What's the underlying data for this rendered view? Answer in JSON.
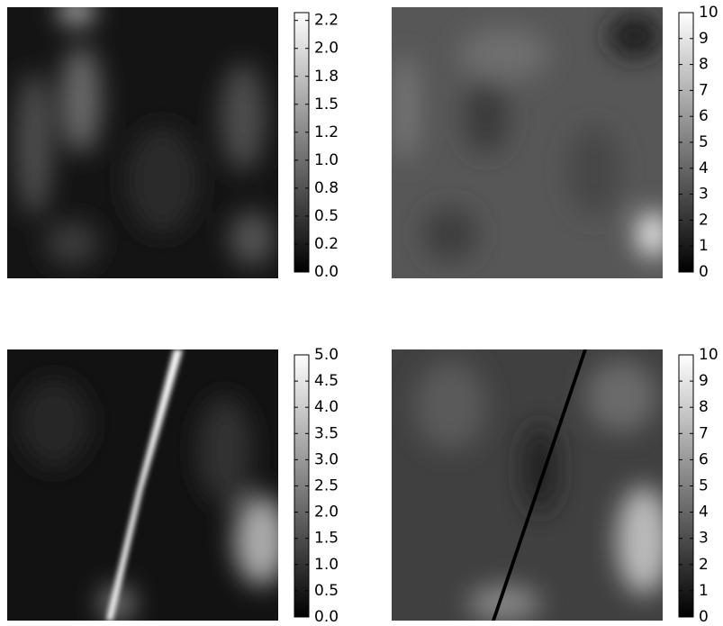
{
  "chart_data": [
    {
      "type": "heatmap",
      "clim": [
        0,
        2.32
      ],
      "cticks": [
        {
          "value": 0,
          "label": "0.0"
        },
        {
          "value": 0.25,
          "label": "0.2"
        },
        {
          "value": 0.5,
          "label": "0.5"
        },
        {
          "value": 0.75,
          "label": "0.8"
        },
        {
          "value": 1,
          "label": "1.0"
        },
        {
          "value": 1.25,
          "label": "1.2"
        },
        {
          "value": 1.5,
          "label": "1.5"
        },
        {
          "value": 1.75,
          "label": "1.8"
        },
        {
          "value": 2,
          "label": "2.0"
        },
        {
          "value": 2.25,
          "label": "2.2"
        }
      ]
    },
    {
      "type": "heatmap",
      "clim": [
        0,
        10
      ],
      "cticks": [
        0,
        1,
        2,
        3,
        4,
        5,
        6,
        7,
        8,
        9,
        10
      ]
    },
    {
      "type": "heatmap",
      "clim": [
        0,
        5
      ],
      "cticks": [
        {
          "value": 0,
          "label": "0.0"
        },
        {
          "value": 0.5,
          "label": "0.5"
        },
        {
          "value": 1,
          "label": "1.0"
        },
        {
          "value": 1.5,
          "label": "1.5"
        },
        {
          "value": 2,
          "label": "2.0"
        },
        {
          "value": 2.5,
          "label": "2.5"
        },
        {
          "value": 3,
          "label": "3.0"
        },
        {
          "value": 3.5,
          "label": "3.5"
        },
        {
          "value": 4,
          "label": "4.0"
        },
        {
          "value": 4.5,
          "label": "4.5"
        },
        {
          "value": 5,
          "label": "5.0"
        }
      ]
    },
    {
      "type": "heatmap",
      "clim": [
        0,
        10
      ],
      "cticks": [
        0,
        1,
        2,
        3,
        4,
        5,
        6,
        7,
        8,
        9,
        10
      ]
    }
  ]
}
